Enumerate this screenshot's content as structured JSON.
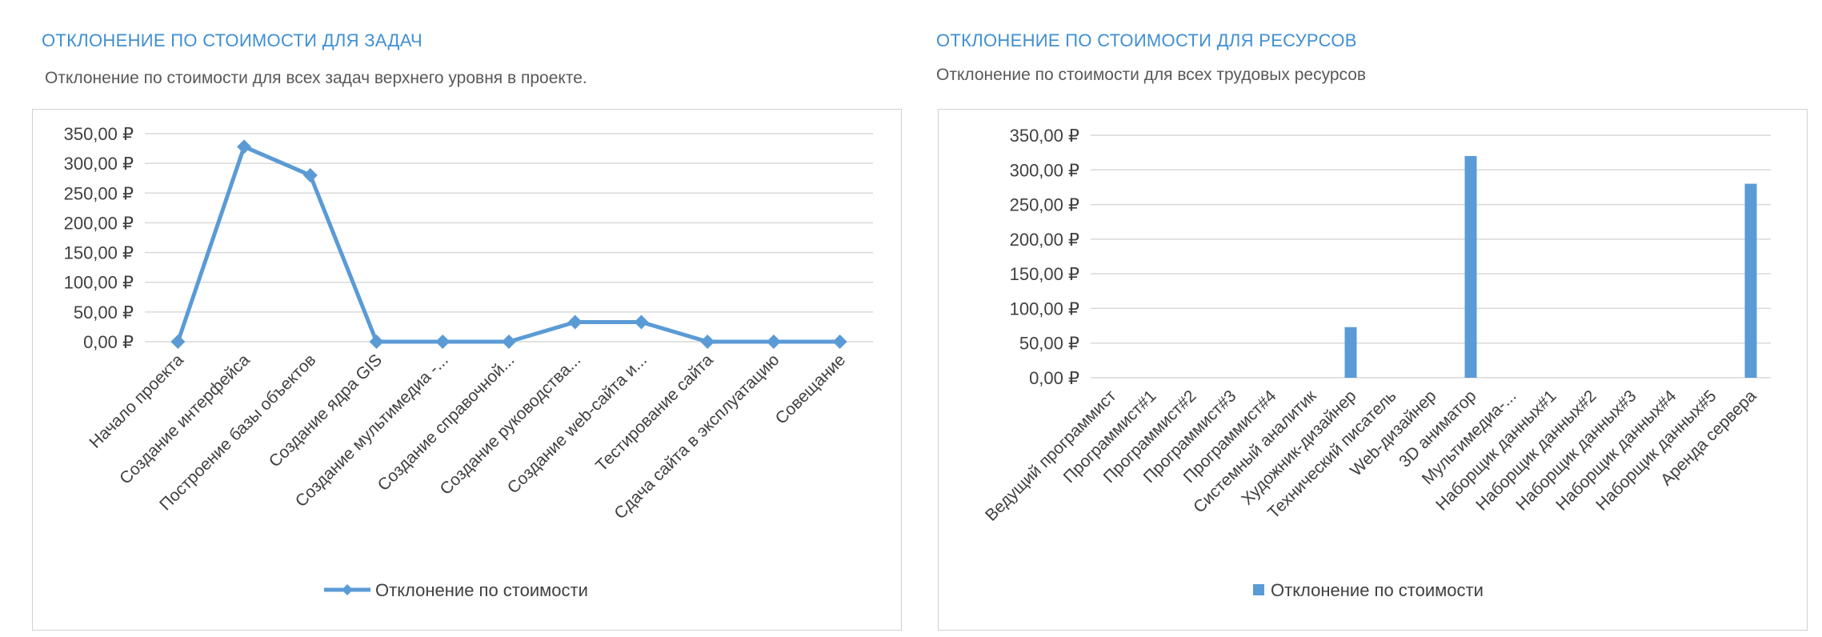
{
  "left_panel": {
    "title": "ОТКЛОНЕНИЕ ПО СТОИМОСТИ ДЛЯ ЗАДАЧ",
    "subtitle": "Отклонение по стоимости для всех задач верхнего уровня в проекте."
  },
  "right_panel": {
    "title": "ОТКЛОНЕНИЕ ПО СТОИМОСТИ ДЛЯ РЕСУРСОВ",
    "subtitle": "Отклонение по стоимости для всех трудовых ресурсов"
  },
  "colors": {
    "accent": "#5b9bd5",
    "title": "#3f8fd2",
    "grid": "#d9d9d9",
    "text": "#404040"
  },
  "chart_data": [
    {
      "type": "line",
      "categories": [
        "Начало проекта",
        "Создание интерфейса",
        "Построение базы объектов",
        "Создание ядра GIS",
        "Создание мультимедиа -...",
        "Создание справочной...",
        "Создание руководства...",
        "Создание web-сайта и...",
        "Тестирование сайта",
        "Сдача сайта в эксплуатацию",
        "Совещание"
      ],
      "series": [
        {
          "name": "Отклонение по стоимости",
          "values": [
            0,
            328,
            280,
            0,
            0,
            0,
            33,
            33,
            0,
            0,
            0
          ]
        }
      ],
      "yticks": [
        "0,00 ₽",
        "50,00 ₽",
        "100,00 ₽",
        "150,00 ₽",
        "200,00 ₽",
        "250,00 ₽",
        "300,00 ₽",
        "350,00 ₽"
      ],
      "ylim": [
        0,
        350
      ],
      "legend": "bottom",
      "grid": true
    },
    {
      "type": "bar",
      "categories": [
        "Ведущий программист",
        "Программист#1",
        "Программист#2",
        "Программист#3",
        "Программист#4",
        "Системный аналитик",
        "Художник-дизайнер",
        "Технический писатель",
        "Web-дизайнер",
        "3D аниматор",
        "Мультимедиа-...",
        "Наборщик данных#1",
        "Наборщик данных#2",
        "Наборщик данных#3",
        "Наборщик данных#4",
        "Наборщик данных#5",
        "Аренда сервера"
      ],
      "series": [
        {
          "name": "Отклонение по стоимости",
          "values": [
            0,
            0,
            0,
            0,
            0,
            0,
            73,
            0,
            0,
            320,
            0,
            0,
            0,
            0,
            0,
            0,
            280
          ]
        }
      ],
      "yticks": [
        "0,00 ₽",
        "50,00 ₽",
        "100,00 ₽",
        "150,00 ₽",
        "200,00 ₽",
        "250,00 ₽",
        "300,00 ₽",
        "350,00 ₽"
      ],
      "ylim": [
        0,
        350
      ],
      "legend": "bottom",
      "grid": true
    }
  ]
}
